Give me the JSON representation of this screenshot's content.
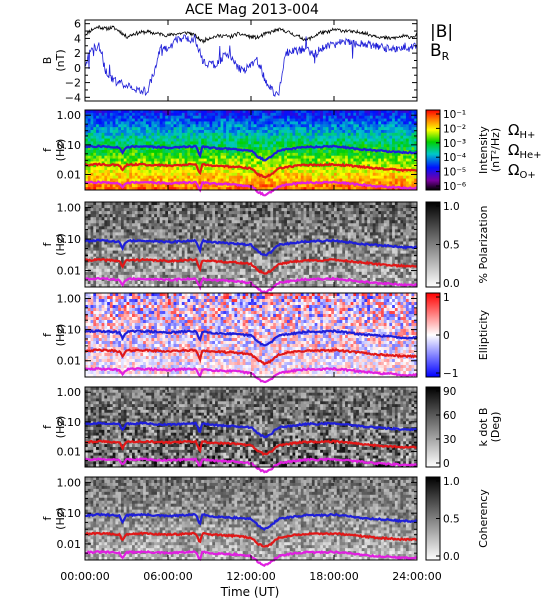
{
  "title": "ACE Mag 2013-004",
  "chart_data": [
    {
      "type": "line",
      "ylabel": "B",
      "yunit": "(nT)",
      "ylim": [
        -4.5,
        6.5
      ],
      "yticks": [
        "6",
        "4",
        "2",
        "0",
        "−2",
        "−4"
      ],
      "ytick_values": [
        6,
        4,
        2,
        0,
        -2,
        -4
      ],
      "x_hours": [
        0,
        0.5,
        1,
        1.5,
        2,
        2.5,
        3,
        3.5,
        4,
        4.5,
        5,
        5.5,
        6,
        6.5,
        7,
        7.5,
        8,
        8.5,
        9,
        9.5,
        10,
        10.5,
        11,
        11.5,
        12,
        12.5,
        13,
        13.5,
        14,
        14.5,
        15,
        15.5,
        16,
        16.5,
        17,
        17.5,
        18,
        18.5,
        19,
        19.5,
        20,
        20.5,
        21,
        21.5,
        22,
        22.5,
        23,
        23.5,
        24
      ],
      "series": [
        {
          "name": "|B|",
          "legend": "|B|",
          "color": "#000000",
          "values": [
            4.5,
            5.2,
            5.6,
            5.3,
            5.5,
            5.0,
            4.2,
            4.6,
            4.8,
            4.9,
            4.7,
            4.6,
            4.4,
            4.6,
            4.7,
            4.8,
            4.3,
            3.6,
            4.1,
            4.3,
            4.4,
            4.2,
            4.6,
            4.5,
            4.2,
            4.1,
            4.6,
            4.9,
            5.2,
            5.0,
            4.6,
            4.2,
            3.8,
            4.2,
            4.8,
            4.8,
            5.2,
            5.1,
            5.0,
            4.8,
            4.9,
            4.5,
            4.4,
            4.1,
            4.0,
            4.1,
            4.3,
            4.2,
            4.4
          ]
        },
        {
          "name": "BR",
          "legend_main": "B",
          "legend_sub": "R",
          "color": "#1f1fd8",
          "values": [
            0.5,
            2.6,
            3.0,
            -0.5,
            -1.5,
            -2.0,
            -2.3,
            -2.8,
            -3.0,
            -3.2,
            -0.4,
            2.8,
            2.4,
            3.7,
            3.9,
            4.0,
            3.7,
            1.0,
            0.4,
            0.5,
            1.5,
            1.8,
            0.2,
            -0.5,
            0.5,
            1.0,
            -1.5,
            -3.0,
            -3.8,
            2.0,
            2.3,
            2.4,
            2.6,
            1.8,
            2.5,
            2.9,
            3.2,
            3.5,
            3.4,
            3.2,
            3.3,
            3.1,
            3.0,
            2.8,
            2.6,
            2.7,
            2.6,
            2.7,
            2.9
          ]
        }
      ]
    },
    {
      "type": "heatmap",
      "ylabel": "f",
      "yunit": "(Hz)",
      "yticks": [
        "1.00",
        "0.10",
        "0.01"
      ],
      "ytick_values": [
        1,
        0.1,
        0.01
      ],
      "colorbar": {
        "label_line1": "Intensity",
        "label_line2": "(nT²/Hz)",
        "ticks": [
          "10⁻¹",
          "10⁻²",
          "10⁻³",
          "10⁻⁴",
          "10⁻⁵",
          "10⁻⁶"
        ],
        "scale": "rainbow"
      },
      "legend": [
        {
          "main": "Ω",
          "sub": "H+",
          "color": "#1f1fd8"
        },
        {
          "main": "Ω",
          "sub": "He+",
          "color": "#e01818"
        },
        {
          "main": "Ω",
          "sub": "O+",
          "color": "#e020e0"
        }
      ]
    },
    {
      "type": "heatmap",
      "ylabel": "f",
      "yunit": "(Hz)",
      "yticks": [
        "1.00",
        "0.10",
        "0.01"
      ],
      "ytick_values": [
        1,
        0.1,
        0.01
      ],
      "colorbar": {
        "label_line1": "% Polarization",
        "label_line2": "",
        "ticks": [
          "1.0",
          "0.5",
          "0.0"
        ],
        "scale": "gray"
      }
    },
    {
      "type": "heatmap",
      "ylabel": "f",
      "yunit": "(Hz)",
      "yticks": [
        "1.00",
        "0.10",
        "0.01"
      ],
      "ytick_values": [
        1,
        0.1,
        0.01
      ],
      "colorbar": {
        "label_line1": "Ellipticity",
        "label_line2": "",
        "ticks": [
          "1",
          "0",
          "−1"
        ],
        "scale": "bwr"
      }
    },
    {
      "type": "heatmap",
      "ylabel": "f",
      "yunit": "(Hz)",
      "yticks": [
        "1.00",
        "0.10",
        "0.01"
      ],
      "ytick_values": [
        1,
        0.1,
        0.01
      ],
      "colorbar": {
        "label_line1": "k dot B",
        "label_line2": "(Deg)",
        "ticks": [
          "90",
          "60",
          "30",
          "0"
        ],
        "scale": "gray"
      }
    },
    {
      "type": "heatmap",
      "ylabel": "f",
      "yunit": "(Hz)",
      "yticks": [
        "1.00",
        "0.10",
        "0.01"
      ],
      "ytick_values": [
        1,
        0.1,
        0.01
      ],
      "colorbar": {
        "label_line1": "Coherency",
        "label_line2": "",
        "ticks": [
          "1.0",
          "0.5",
          "0.0"
        ],
        "scale": "gray"
      }
    }
  ],
  "gyro_hours": [
    0,
    1,
    2,
    2.5,
    2.7,
    3,
    4,
    5,
    6,
    7,
    8,
    8.3,
    8.5,
    9,
    10,
    11,
    12,
    12.5,
    13,
    13.5,
    14,
    15,
    16,
    17,
    18,
    19,
    20,
    21,
    22,
    23,
    24
  ],
  "gyro_lines": {
    "H+": [
      0.085,
      0.09,
      0.085,
      0.082,
      0.05,
      0.085,
      0.09,
      0.085,
      0.08,
      0.085,
      0.09,
      0.04,
      0.09,
      0.08,
      0.075,
      0.07,
      0.065,
      0.04,
      0.03,
      0.04,
      0.065,
      0.075,
      0.085,
      0.085,
      0.09,
      0.08,
      0.07,
      0.065,
      0.06,
      0.055,
      0.055
    ],
    "He+": [
      0.021,
      0.022,
      0.021,
      0.02,
      0.013,
      0.021,
      0.022,
      0.021,
      0.02,
      0.021,
      0.022,
      0.01,
      0.022,
      0.02,
      0.019,
      0.018,
      0.016,
      0.01,
      0.008,
      0.01,
      0.016,
      0.019,
      0.021,
      0.021,
      0.022,
      0.02,
      0.018,
      0.016,
      0.015,
      0.014,
      0.014
    ],
    "O+": [
      0.0053,
      0.0055,
      0.0053,
      0.005,
      0.0035,
      0.0053,
      0.0055,
      0.0053,
      0.005,
      0.0053,
      0.0055,
      0.0028,
      0.0055,
      0.005,
      0.0048,
      0.0045,
      0.004,
      0.0026,
      0.002,
      0.0026,
      0.004,
      0.0048,
      0.0053,
      0.0053,
      0.0055,
      0.005,
      0.0045,
      0.004,
      0.0038,
      0.0035,
      0.0035
    ]
  },
  "xaxis": {
    "label": "Time (UT)",
    "ticks": [
      "00:00:00",
      "06:00:00",
      "12:00:00",
      "18:00:00",
      "24:00:00"
    ],
    "tick_hours": [
      0,
      6,
      12,
      18,
      24
    ]
  }
}
